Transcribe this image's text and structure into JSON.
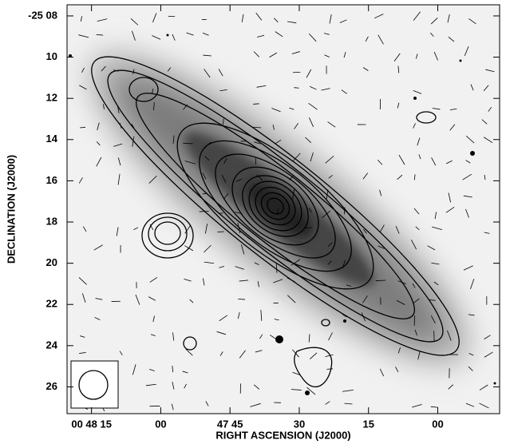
{
  "chart_data": {
    "type": "image",
    "xlabel": "RIGHT ASCENSION (J2000)",
    "ylabel": "DECLINATION (J2000)",
    "xlim": [
      2900.3,
      2806.6
    ],
    "ylim": [
      7.46,
      27.3
    ],
    "xticks": [
      {
        "value": 2895,
        "label": "00 48 15"
      },
      {
        "value": 2880,
        "label": "00"
      },
      {
        "value": 2865,
        "label": "47 45"
      },
      {
        "value": 2850,
        "label": "30"
      },
      {
        "value": 2835,
        "label": "15"
      },
      {
        "value": 2820,
        "label": "00"
      }
    ],
    "yticks": [
      {
        "value": 8,
        "label": "-25 08"
      },
      {
        "value": 10,
        "label": "10"
      },
      {
        "value": 12,
        "label": "12"
      },
      {
        "value": 14,
        "label": "14"
      },
      {
        "value": 16,
        "label": "16"
      },
      {
        "value": 18,
        "label": "18"
      },
      {
        "value": 20,
        "label": "20"
      },
      {
        "value": 22,
        "label": "22"
      },
      {
        "value": 24,
        "label": "24"
      },
      {
        "value": 26,
        "label": "26"
      }
    ]
  }
}
